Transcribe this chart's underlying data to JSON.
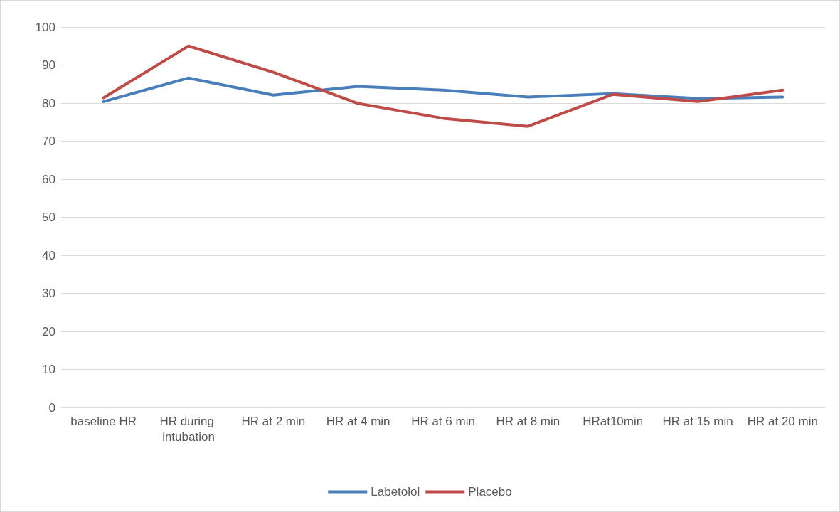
{
  "chart_data": {
    "type": "line",
    "categories": [
      "baseline HR",
      "HR during intubation",
      "HR at 2 min",
      "HR at 4 min",
      "HR at 6 min",
      "HR at 8 min",
      "HRat10min",
      "HR at 15 min",
      "HR at 20 min"
    ],
    "series": [
      {
        "name": "Labetolol",
        "color": "#4a7ebb",
        "values": [
          80.4,
          86.6,
          82.1,
          84.4,
          83.4,
          81.6,
          82.5,
          81.2,
          81.6
        ]
      },
      {
        "name": "Placebo",
        "color": "#be4b48",
        "values": [
          81.4,
          95.0,
          88.1,
          79.9,
          76.0,
          73.9,
          82.3,
          80.4,
          83.4
        ]
      }
    ],
    "ylim": [
      0,
      100
    ],
    "yticks": [
      0,
      10,
      20,
      30,
      40,
      50,
      60,
      70,
      80,
      90,
      100
    ],
    "grid": "y",
    "legend": "bottom",
    "marker": "none",
    "line_style": "solid"
  }
}
